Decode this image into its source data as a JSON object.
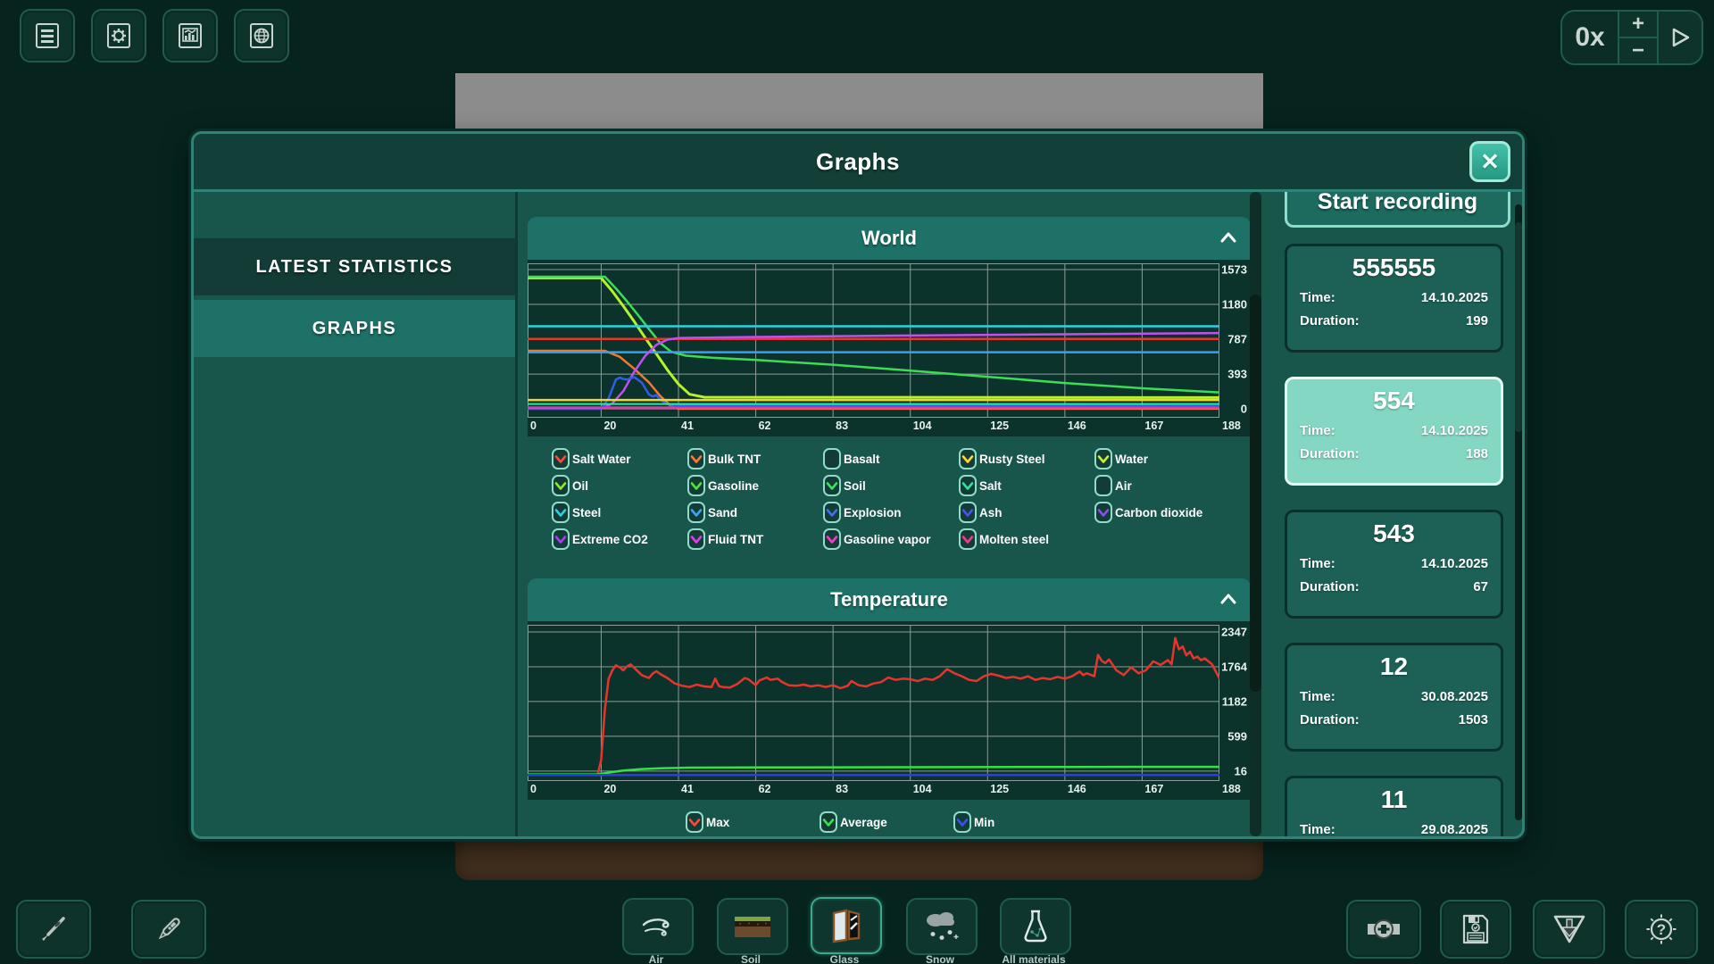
{
  "topbar": {
    "speed": "0x",
    "plus": "+",
    "minus": "−",
    "left_icons": [
      "list-icon",
      "gear-icon",
      "stats-icon",
      "globe-icon"
    ]
  },
  "dialog": {
    "title": "Graphs",
    "close_label": "✕",
    "sidebar": {
      "items": [
        {
          "label": "LATEST STATISTICS",
          "selected": false
        },
        {
          "label": "GRAPHS",
          "selected": true
        }
      ]
    },
    "world_legend": [
      {
        "label": "Salt Water",
        "check": "#ff4838"
      },
      {
        "label": "Bulk TNT",
        "check": "#ff7a2e"
      },
      {
        "label": "Basalt",
        "check": null
      },
      {
        "label": "Rusty Steel",
        "check": "#ffd82e"
      },
      {
        "label": "Water",
        "check": "#c8f02e"
      },
      {
        "label": "Oil",
        "check": "#8fe82e"
      },
      {
        "label": "Gasoline",
        "check": "#4fe238"
      },
      {
        "label": "Soil",
        "check": "#38e25c"
      },
      {
        "label": "Salt",
        "check": "#2ee29e"
      },
      {
        "label": "Air",
        "check": null
      },
      {
        "label": "Steel",
        "check": "#2ecfe2"
      },
      {
        "label": "Sand",
        "check": "#38a6ff"
      },
      {
        "label": "Explosion",
        "check": "#3f6ff5"
      },
      {
        "label": "Ash",
        "check": "#4953f5"
      },
      {
        "label": "Carbon dioxide",
        "check": "#8a4df5"
      },
      {
        "label": "Extreme CO2",
        "check": "#a83df5"
      },
      {
        "label": "Fluid TNT",
        "check": "#e23af5"
      },
      {
        "label": "Gasoline vapor",
        "check": "#f53ad2"
      },
      {
        "label": "Molten steel",
        "check": "#f53a8c"
      }
    ],
    "temp_legend": [
      {
        "label": "Max",
        "check": "#ff4838"
      },
      {
        "label": "Average",
        "check": "#3ae24f"
      },
      {
        "label": "Min",
        "check": "#3a4ff5"
      }
    ],
    "recordings": {
      "start_label": "Start recording",
      "time_label": "Time:",
      "duration_label": "Duration:",
      "cards": [
        {
          "number": "555555",
          "time": "14.10.2025",
          "duration": "199",
          "selected": false
        },
        {
          "number": "554",
          "time": "14.10.2025",
          "duration": "188",
          "selected": true
        },
        {
          "number": "543",
          "time": "14.10.2025",
          "duration": "67",
          "selected": false
        },
        {
          "number": "12",
          "time": "30.08.2025",
          "duration": "1503",
          "selected": false
        },
        {
          "number": "11",
          "time": "29.08.2025",
          "duration": null,
          "selected": false
        }
      ]
    }
  },
  "toolbar": {
    "materials": [
      {
        "label": "Air",
        "selected": false
      },
      {
        "label": "Soil",
        "selected": false
      },
      {
        "label": "Glass",
        "selected": true
      },
      {
        "label": "Snow",
        "selected": false
      },
      {
        "label": "All materials",
        "selected": false
      }
    ]
  },
  "chart_data": [
    {
      "type": "line",
      "title": "World",
      "xlabel": "",
      "ylabel": "",
      "xlim": [
        0,
        188
      ],
      "ylim": [
        -100,
        1643
      ],
      "x_ticks": [
        0,
        20,
        41,
        62,
        83,
        104,
        125,
        146,
        167,
        188
      ],
      "y_ticks": [
        1573,
        1180,
        787,
        393,
        0
      ],
      "grid": true,
      "grid_color": "#8e9b96",
      "legend_position": "bottom",
      "series": [
        {
          "name": "Water",
          "color": "#b4f22e",
          "width": 3,
          "points": [
            [
              0,
              1478
            ],
            [
              20,
              1478
            ],
            [
              23,
              1330
            ],
            [
              26,
              1160
            ],
            [
              29,
              985
            ],
            [
              32,
              800
            ],
            [
              35,
              620
            ],
            [
              38,
              440
            ],
            [
              41,
              280
            ],
            [
              44,
              165
            ],
            [
              48,
              132
            ],
            [
              188,
              128
            ]
          ]
        },
        {
          "name": "Soil",
          "color": "#3cdc55",
          "width": 2.5,
          "points": [
            [
              0,
              1492
            ],
            [
              21,
              1492
            ],
            [
              24,
              1360
            ],
            [
              27,
              1215
            ],
            [
              30,
              1060
            ],
            [
              33,
              900
            ],
            [
              36,
              745
            ],
            [
              39,
              645
            ],
            [
              43,
              600
            ],
            [
              50,
              578
            ],
            [
              62,
              552
            ],
            [
              83,
              498
            ],
            [
              104,
              432
            ],
            [
              125,
              362
            ],
            [
              146,
              292
            ],
            [
              167,
              232
            ],
            [
              188,
              186
            ]
          ]
        },
        {
          "name": "Steel",
          "color": "#2cd2e6",
          "width": 2.5,
          "points": [
            [
              0,
              933
            ],
            [
              188,
              933
            ]
          ]
        },
        {
          "name": "Salt Water",
          "color": "#e8352c",
          "width": 2.5,
          "points": [
            [
              0,
              789
            ],
            [
              188,
              789
            ]
          ]
        },
        {
          "name": "Bulk TNT",
          "color": "#f07a2e",
          "width": 2.5,
          "points": [
            [
              0,
              656
            ],
            [
              21,
              656
            ],
            [
              25,
              588
            ],
            [
              29,
              452
            ],
            [
              33,
              298
            ],
            [
              36,
              148
            ],
            [
              39,
              28
            ],
            [
              41,
              2
            ],
            [
              188,
              2
            ]
          ]
        },
        {
          "name": "Sand",
          "color": "#3c9ef2",
          "width": 2.5,
          "points": [
            [
              0,
              640
            ],
            [
              188,
              640
            ]
          ]
        },
        {
          "name": "Carbon dioxide",
          "color": "#c24df2",
          "width": 2.5,
          "points": [
            [
              0,
              2
            ],
            [
              20,
              2
            ],
            [
              23,
              60
            ],
            [
              26,
              200
            ],
            [
              29,
              420
            ],
            [
              32,
              600
            ],
            [
              35,
              722
            ],
            [
              38,
              782
            ],
            [
              41,
              800
            ],
            [
              62,
              812
            ],
            [
              104,
              828
            ],
            [
              146,
              842
            ],
            [
              188,
              856
            ]
          ]
        },
        {
          "name": "Explosion",
          "color": "#2f5fe8",
          "width": 2.5,
          "points": [
            [
              0,
              2
            ],
            [
              20,
              2
            ],
            [
              22,
              118
            ],
            [
              24,
              330
            ],
            [
              25,
              352
            ],
            [
              26,
              338
            ],
            [
              27,
              330
            ],
            [
              28,
              345
            ],
            [
              29,
              358
            ],
            [
              31,
              298
            ],
            [
              33,
              162
            ],
            [
              34,
              140
            ],
            [
              35,
              155
            ],
            [
              36,
              108
            ],
            [
              38,
              52
            ],
            [
              41,
              40
            ],
            [
              62,
              38
            ],
            [
              104,
              34
            ],
            [
              188,
              30
            ]
          ]
        },
        {
          "name": "Rusty Steel",
          "color": "#f2d629",
          "width": 2.5,
          "points": [
            [
              0,
              100
            ],
            [
              188,
              100
            ]
          ]
        },
        {
          "name": "Salt",
          "color": "#2ce8a4",
          "width": 2,
          "points": [
            [
              0,
              55
            ],
            [
              188,
              55
            ]
          ]
        },
        {
          "name": "Extreme CO2",
          "color": "#8b3af0",
          "width": 2,
          "points": [
            [
              0,
              20
            ],
            [
              188,
              20
            ]
          ]
        },
        {
          "name": "Molten steel",
          "color": "#f23a96",
          "width": 2,
          "points": [
            [
              0,
              8
            ],
            [
              188,
              8
            ]
          ]
        }
      ]
    },
    {
      "type": "line",
      "title": "Temperature",
      "xlabel": "",
      "ylabel": "",
      "xlim": [
        0,
        188
      ],
      "ylim": [
        -150,
        2467
      ],
      "x_ticks": [
        0,
        20,
        41,
        62,
        83,
        104,
        125,
        146,
        167,
        188
      ],
      "y_ticks": [
        2347,
        1764,
        1182,
        599,
        16
      ],
      "grid": true,
      "grid_color": "#8e9b96",
      "legend_position": "bottom",
      "series": [
        {
          "name": "Max",
          "color": "#e8352c",
          "width": 2.5,
          "points": [
            [
              0,
              -45
            ],
            [
              19,
              -45
            ],
            [
              20,
              200
            ],
            [
              21,
              1050
            ],
            [
              22,
              1560
            ],
            [
              23,
              1700
            ],
            [
              24,
              1790
            ],
            [
              25,
              1755
            ],
            [
              26,
              1705
            ],
            [
              27,
              1770
            ],
            [
              28,
              1805
            ],
            [
              29,
              1745
            ],
            [
              31,
              1625
            ],
            [
              33,
              1575
            ],
            [
              34,
              1650
            ],
            [
              35,
              1690
            ],
            [
              36,
              1645
            ],
            [
              38,
              1575
            ],
            [
              40,
              1485
            ],
            [
              42,
              1445
            ],
            [
              44,
              1425
            ],
            [
              46,
              1465
            ],
            [
              48,
              1435
            ],
            [
              50,
              1425
            ],
            [
              51,
              1565
            ],
            [
              52,
              1440
            ],
            [
              53,
              1425
            ],
            [
              55,
              1415
            ],
            [
              57,
              1475
            ],
            [
              59,
              1575
            ],
            [
              60,
              1555
            ],
            [
              62,
              1455
            ],
            [
              63,
              1535
            ],
            [
              65,
              1585
            ],
            [
              66,
              1545
            ],
            [
              68,
              1565
            ],
            [
              69,
              1515
            ],
            [
              71,
              1455
            ],
            [
              73,
              1445
            ],
            [
              75,
              1465
            ],
            [
              77,
              1435
            ],
            [
              79,
              1455
            ],
            [
              81,
              1425
            ],
            [
              83,
              1455
            ],
            [
              85,
              1405
            ],
            [
              87,
              1445
            ],
            [
              88,
              1525
            ],
            [
              90,
              1455
            ],
            [
              92,
              1435
            ],
            [
              94,
              1485
            ],
            [
              96,
              1505
            ],
            [
              98,
              1585
            ],
            [
              100,
              1545
            ],
            [
              102,
              1565
            ],
            [
              104,
              1555
            ],
            [
              106,
              1525
            ],
            [
              108,
              1565
            ],
            [
              110,
              1545
            ],
            [
              112,
              1605
            ],
            [
              114,
              1725
            ],
            [
              116,
              1655
            ],
            [
              118,
              1605
            ],
            [
              120,
              1545
            ],
            [
              122,
              1525
            ],
            [
              124,
              1605
            ],
            [
              126,
              1645
            ],
            [
              128,
              1615
            ],
            [
              130,
              1575
            ],
            [
              132,
              1595
            ],
            [
              134,
              1565
            ],
            [
              136,
              1605
            ],
            [
              138,
              1545
            ],
            [
              140,
              1575
            ],
            [
              142,
              1555
            ],
            [
              144,
              1595
            ],
            [
              146,
              1565
            ],
            [
              148,
              1605
            ],
            [
              150,
              1685
            ],
            [
              151,
              1625
            ],
            [
              152,
              1655
            ],
            [
              154,
              1605
            ],
            [
              155,
              1965
            ],
            [
              156,
              1865
            ],
            [
              157,
              1825
            ],
            [
              158,
              1885
            ],
            [
              159,
              1795
            ],
            [
              160,
              1705
            ],
            [
              162,
              1625
            ],
            [
              164,
              1755
            ],
            [
              166,
              1655
            ],
            [
              168,
              1705
            ],
            [
              170,
              1855
            ],
            [
              172,
              1795
            ],
            [
              174,
              1875
            ],
            [
              175,
              1805
            ],
            [
              176,
              2245
            ],
            [
              177,
              2055
            ],
            [
              178,
              2105
            ],
            [
              179,
              1955
            ],
            [
              180,
              2015
            ],
            [
              181,
              1905
            ],
            [
              182,
              1935
            ],
            [
              183,
              1875
            ],
            [
              184,
              1905
            ],
            [
              185,
              1855
            ],
            [
              186,
              1805
            ],
            [
              188,
              1565
            ]
          ]
        },
        {
          "name": "Average",
          "color": "#35e048",
          "width": 2.5,
          "points": [
            [
              0,
              -40
            ],
            [
              19,
              -40
            ],
            [
              22,
              -10
            ],
            [
              26,
              25
            ],
            [
              31,
              50
            ],
            [
              37,
              66
            ],
            [
              44,
              74
            ],
            [
              62,
              78
            ],
            [
              104,
              82
            ],
            [
              146,
              86
            ],
            [
              188,
              88
            ]
          ]
        },
        {
          "name": "Min",
          "color": "#2c3ce8",
          "width": 2.5,
          "points": [
            [
              0,
              -48
            ],
            [
              188,
              -48
            ]
          ]
        }
      ]
    }
  ]
}
